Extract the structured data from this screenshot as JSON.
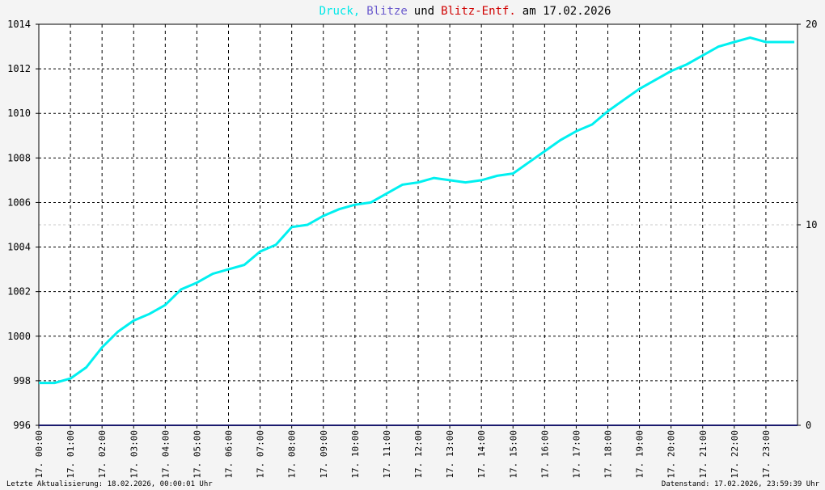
{
  "chart_data": {
    "type": "line",
    "title_parts": [
      {
        "text": "Druck,",
        "color": "#00e8e8"
      },
      {
        "text": "Blitze",
        "color": "#6a5acd"
      },
      {
        "text": "und",
        "color": "#000000"
      },
      {
        "text": "Blitz-Entf.",
        "color": "#d00000"
      },
      {
        "text": "am 17.02.2026",
        "color": "#000000"
      }
    ],
    "xlim": [
      0,
      24
    ],
    "xticks": [
      {
        "value": 0,
        "label": "17. 00:00"
      },
      {
        "value": 1,
        "label": "17. 01:00"
      },
      {
        "value": 2,
        "label": "17. 02:00"
      },
      {
        "value": 3,
        "label": "17. 03:00"
      },
      {
        "value": 4,
        "label": "17. 04:00"
      },
      {
        "value": 5,
        "label": "17. 05:00"
      },
      {
        "value": 6,
        "label": "17. 06:00"
      },
      {
        "value": 7,
        "label": "17. 07:00"
      },
      {
        "value": 8,
        "label": "17. 08:00"
      },
      {
        "value": 9,
        "label": "17. 09:00"
      },
      {
        "value": 10,
        "label": "17. 10:00"
      },
      {
        "value": 11,
        "label": "17. 11:00"
      },
      {
        "value": 12,
        "label": "17. 12:00"
      },
      {
        "value": 13,
        "label": "17. 13:00"
      },
      {
        "value": 14,
        "label": "17. 14:00"
      },
      {
        "value": 15,
        "label": "17. 15:00"
      },
      {
        "value": 16,
        "label": "17. 16:00"
      },
      {
        "value": 17,
        "label": "17. 17:00"
      },
      {
        "value": 18,
        "label": "17. 18:00"
      },
      {
        "value": 19,
        "label": "17. 19:00"
      },
      {
        "value": 20,
        "label": "17. 20:00"
      },
      {
        "value": 21,
        "label": "17. 21:00"
      },
      {
        "value": 22,
        "label": "17. 22:00"
      },
      {
        "value": 23,
        "label": "17. 23:00"
      }
    ],
    "ylim": [
      996,
      1014
    ],
    "yticks": [
      996,
      998,
      1000,
      1002,
      1004,
      1006,
      1008,
      1010,
      1012,
      1014
    ],
    "y2lim": [
      0,
      20
    ],
    "y2ticks": [
      0,
      10,
      20
    ],
    "y2tick_colors": [
      "#000000",
      "#d00000",
      "#000000"
    ],
    "grid": true,
    "series": [
      {
        "name": "Druck",
        "color": "#00f0f0",
        "x": [
          0,
          0.5,
          1,
          1.5,
          2,
          2.5,
          3,
          3.5,
          4,
          4.5,
          5,
          5.5,
          6,
          6.5,
          7,
          7.5,
          8,
          8.5,
          9,
          9.5,
          10,
          10.5,
          11,
          11.5,
          12,
          12.5,
          13,
          13.5,
          14,
          14.5,
          15,
          15.5,
          16,
          16.5,
          17,
          17.5,
          18,
          18.5,
          19,
          19.5,
          20,
          20.5,
          21,
          21.5,
          22,
          22.5,
          23,
          23.5,
          23.9
        ],
        "values": [
          997.9,
          997.9,
          998.1,
          998.6,
          999.5,
          1000.2,
          1000.7,
          1001.0,
          1001.4,
          1002.1,
          1002.4,
          1002.8,
          1003.0,
          1003.2,
          1003.8,
          1004.1,
          1004.9,
          1005.0,
          1005.4,
          1005.7,
          1005.9,
          1006.0,
          1006.4,
          1006.8,
          1006.9,
          1007.1,
          1007.0,
          1006.9,
          1007.0,
          1007.2,
          1007.3,
          1007.8,
          1008.3,
          1008.8,
          1009.2,
          1009.5,
          1010.1,
          1010.6,
          1011.1,
          1011.5,
          1011.9,
          1012.2,
          1012.6,
          1013.0,
          1013.2,
          1013.4,
          1013.2,
          1013.2,
          1013.2
        ]
      },
      {
        "name": "Blitze",
        "color": "#1a1a6e",
        "axis": "y2",
        "x": [
          0,
          24
        ],
        "values": [
          0,
          0
        ]
      }
    ],
    "footer_left": "Letzte Aktualisierung: 18.02.2026, 00:00:01 Uhr",
    "footer_right": "Datenstand: 17.02.2026, 23:59:39 Uhr"
  }
}
